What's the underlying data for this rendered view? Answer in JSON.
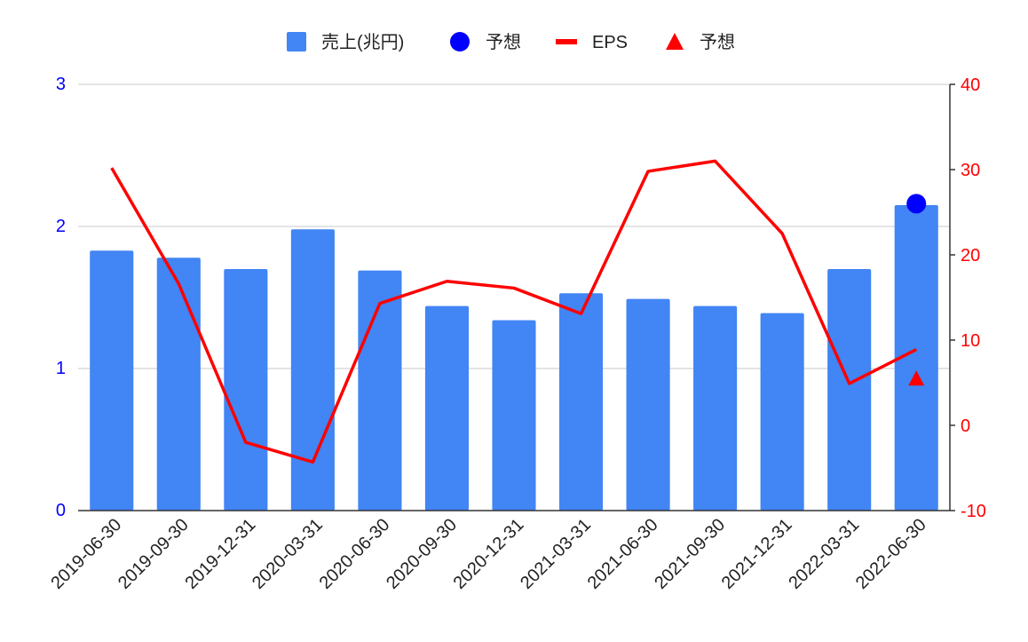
{
  "chart_data": {
    "type": "bar",
    "categories": [
      "2019-06-30",
      "2019-09-30",
      "2019-12-31",
      "2020-03-31",
      "2020-06-30",
      "2020-09-30",
      "2020-12-31",
      "2021-03-31",
      "2021-06-30",
      "2021-09-30",
      "2021-12-31",
      "2022-03-31",
      "2022-06-30"
    ],
    "left_axis": {
      "ylim": [
        0,
        3
      ],
      "ticks": [
        "0",
        "1",
        "2",
        "3"
      ],
      "color": "#0000ff"
    },
    "right_axis": {
      "ylim": [
        -10,
        40
      ],
      "ticks": [
        "-10",
        "0",
        "10",
        "20",
        "30",
        "40"
      ],
      "color": "#ff0000"
    },
    "grid": true,
    "legend_position": "top-center",
    "series": [
      {
        "name": "売上(兆円)",
        "type": "bar",
        "axis": "left",
        "color": "#4285f4",
        "values": [
          1.83,
          1.78,
          1.7,
          1.98,
          1.69,
          1.44,
          1.34,
          1.53,
          1.49,
          1.44,
          1.39,
          1.7,
          2.15
        ]
      },
      {
        "name": "予想",
        "type": "scatter",
        "marker": "circle",
        "axis": "left",
        "color": "#0000ff",
        "points": [
          {
            "x": "2022-06-30",
            "y": 2.16
          }
        ]
      },
      {
        "name": "EPS",
        "type": "line",
        "axis": "right",
        "color": "#ff0000",
        "values": [
          30.2,
          16.6,
          -2.0,
          -4.3,
          14.3,
          16.9,
          16.1,
          13.1,
          29.8,
          31.0,
          22.5,
          4.9,
          8.9
        ]
      },
      {
        "name": "予想",
        "type": "scatter",
        "marker": "triangle",
        "axis": "right",
        "color": "#ff0000",
        "points": [
          {
            "x": "2022-06-30",
            "y": 5.5
          }
        ]
      }
    ]
  }
}
